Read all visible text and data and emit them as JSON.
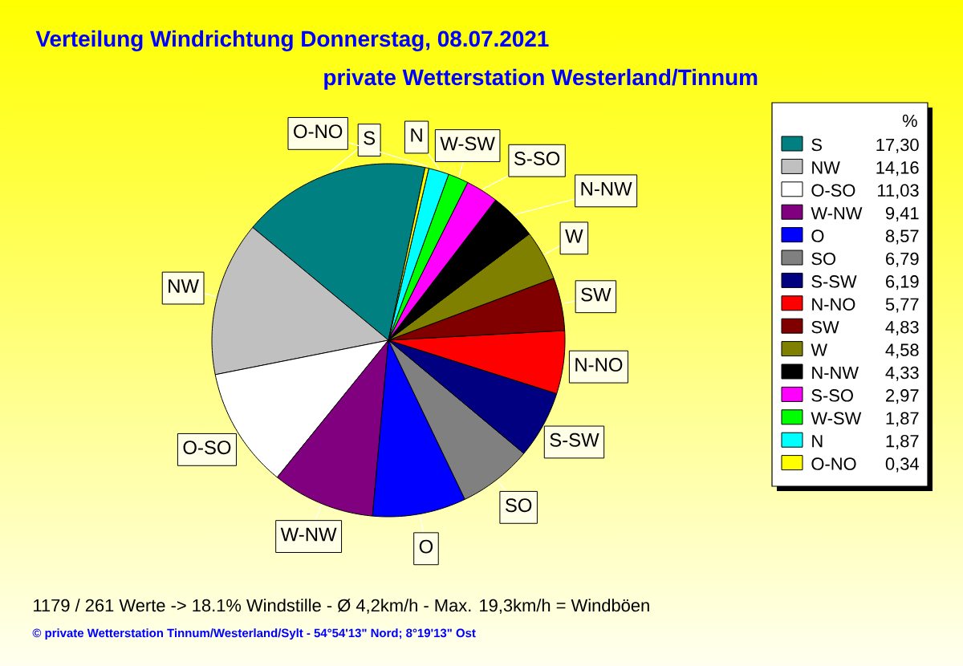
{
  "chart_data": {
    "type": "pie",
    "title": "Verteilung Windrichtung   Donnerstag, 08.07.2021",
    "subtitle": "private Wetterstation Westerland/Tinnum",
    "legend_title": "%",
    "legend": "right",
    "categories": [
      "S",
      "NW",
      "O-SO",
      "W-NW",
      "O",
      "SO",
      "S-SW",
      "N-NO",
      "SW",
      "W",
      "N-NW",
      "S-SO",
      "W-SW",
      "N",
      "O-NO"
    ],
    "values": [
      17.3,
      14.16,
      11.03,
      9.41,
      8.57,
      6.79,
      6.19,
      5.77,
      4.83,
      4.58,
      4.33,
      2.97,
      1.87,
      1.87,
      0.34
    ],
    "value_labels": [
      "17,30",
      "14,16",
      "11,03",
      "9,41",
      "8,57",
      "6,79",
      "6,19",
      "5,77",
      "4,83",
      "4,58",
      "4,33",
      "2,97",
      "1,87",
      "1,87",
      "0,34"
    ],
    "colors": [
      "#008080",
      "#c0c0c0",
      "#ffffff",
      "#800080",
      "#0000ff",
      "#808080",
      "#000080",
      "#ff0000",
      "#800000",
      "#808000",
      "#000000",
      "#ff00ff",
      "#00ff00",
      "#00ffff",
      "#ffff00"
    ],
    "annotations": [
      "1179 / 261 Werte  -> 18.1% Windstille   -   Ø 4,2km/h  -  Max. 19,3km/h = Windböen",
      "© private Wetterstation Tinnum/Westerland/Sylt  -  54°54'13\" Nord; 8°19'13\" Ost"
    ]
  }
}
